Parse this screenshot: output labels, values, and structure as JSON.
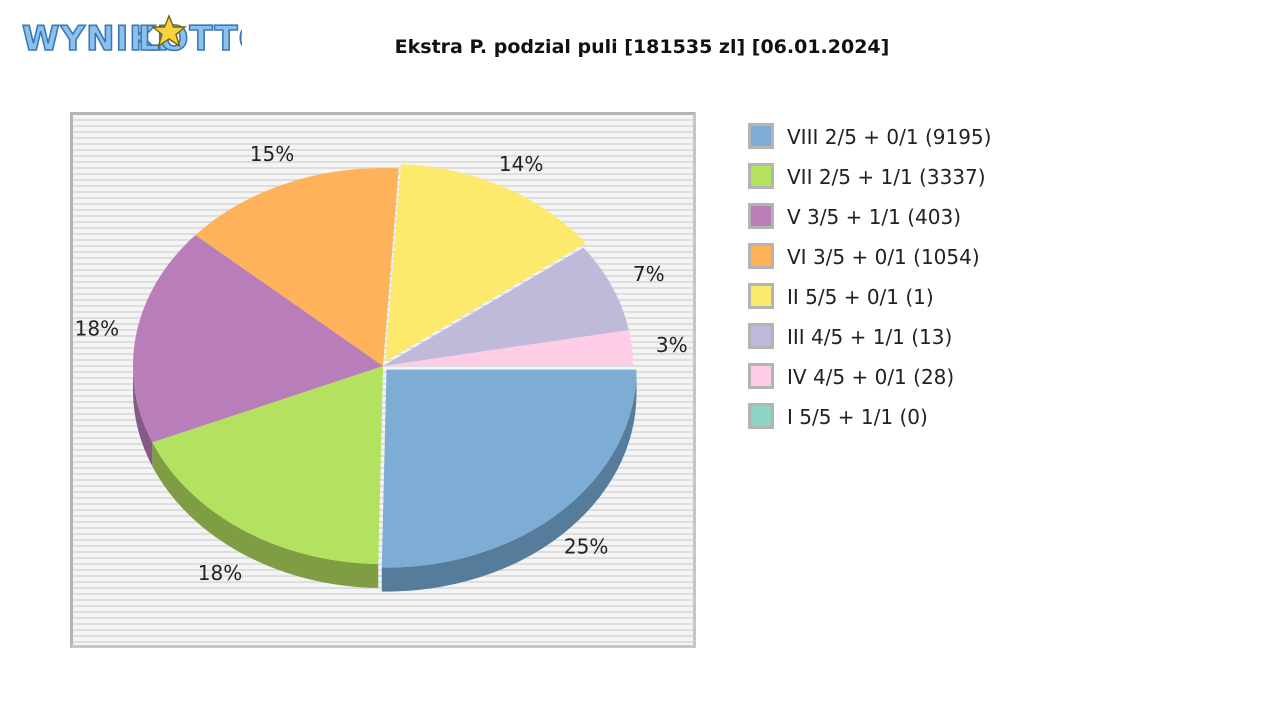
{
  "logo": {
    "text_left": "WYNIKI",
    "text_right": "LOTTO"
  },
  "chart_data": {
    "type": "pie",
    "title": "Ekstra P. podzial puli [181535 zl] [06.01.2024]",
    "legend_position": "right",
    "slices": [
      {
        "label": "VIII 2/5 + 0/1 (9195)",
        "percent_label": "25%",
        "value": 25.3,
        "color": "#7dadd5",
        "shade": "#567c9c",
        "exploded": true
      },
      {
        "label": "VII 2/5 + 1/1 (3337)",
        "percent_label": "18%",
        "value": 18.4,
        "color": "#b3e160",
        "shade": "#7f9e44",
        "exploded": false
      },
      {
        "label": "V 3/5 + 1/1 (403)",
        "percent_label": "18%",
        "value": 17.8,
        "color": "#b97eb9",
        "shade": "#855b85",
        "exploded": false
      },
      {
        "label": "VI 3/5 + 0/1 (1054)",
        "percent_label": "15%",
        "value": 14.5,
        "color": "#feb35a",
        "shade": "#b98241",
        "exploded": false
      },
      {
        "label": "II 5/5 + 0/1 (1)",
        "percent_label": "14%",
        "value": 13.8,
        "color": "#fde96b",
        "shade": "#b8a94d",
        "exploded": true
      },
      {
        "label": "III 4/5 + 1/1 (13)",
        "percent_label": "7%",
        "value": 7.3,
        "color": "#bfb9da",
        "shade": "#8a869e",
        "exploded": false
      },
      {
        "label": "IV 4/5 + 0/1 (28)",
        "percent_label": "3%",
        "value": 2.9,
        "color": "#fecce5",
        "shade": "#b893a6",
        "exploded": false
      },
      {
        "label": "I 5/5 + 1/1 (0)",
        "percent_label": "",
        "value": 0,
        "color": "#8ed4c6",
        "shade": "#669a90",
        "exploded": false
      }
    ]
  }
}
